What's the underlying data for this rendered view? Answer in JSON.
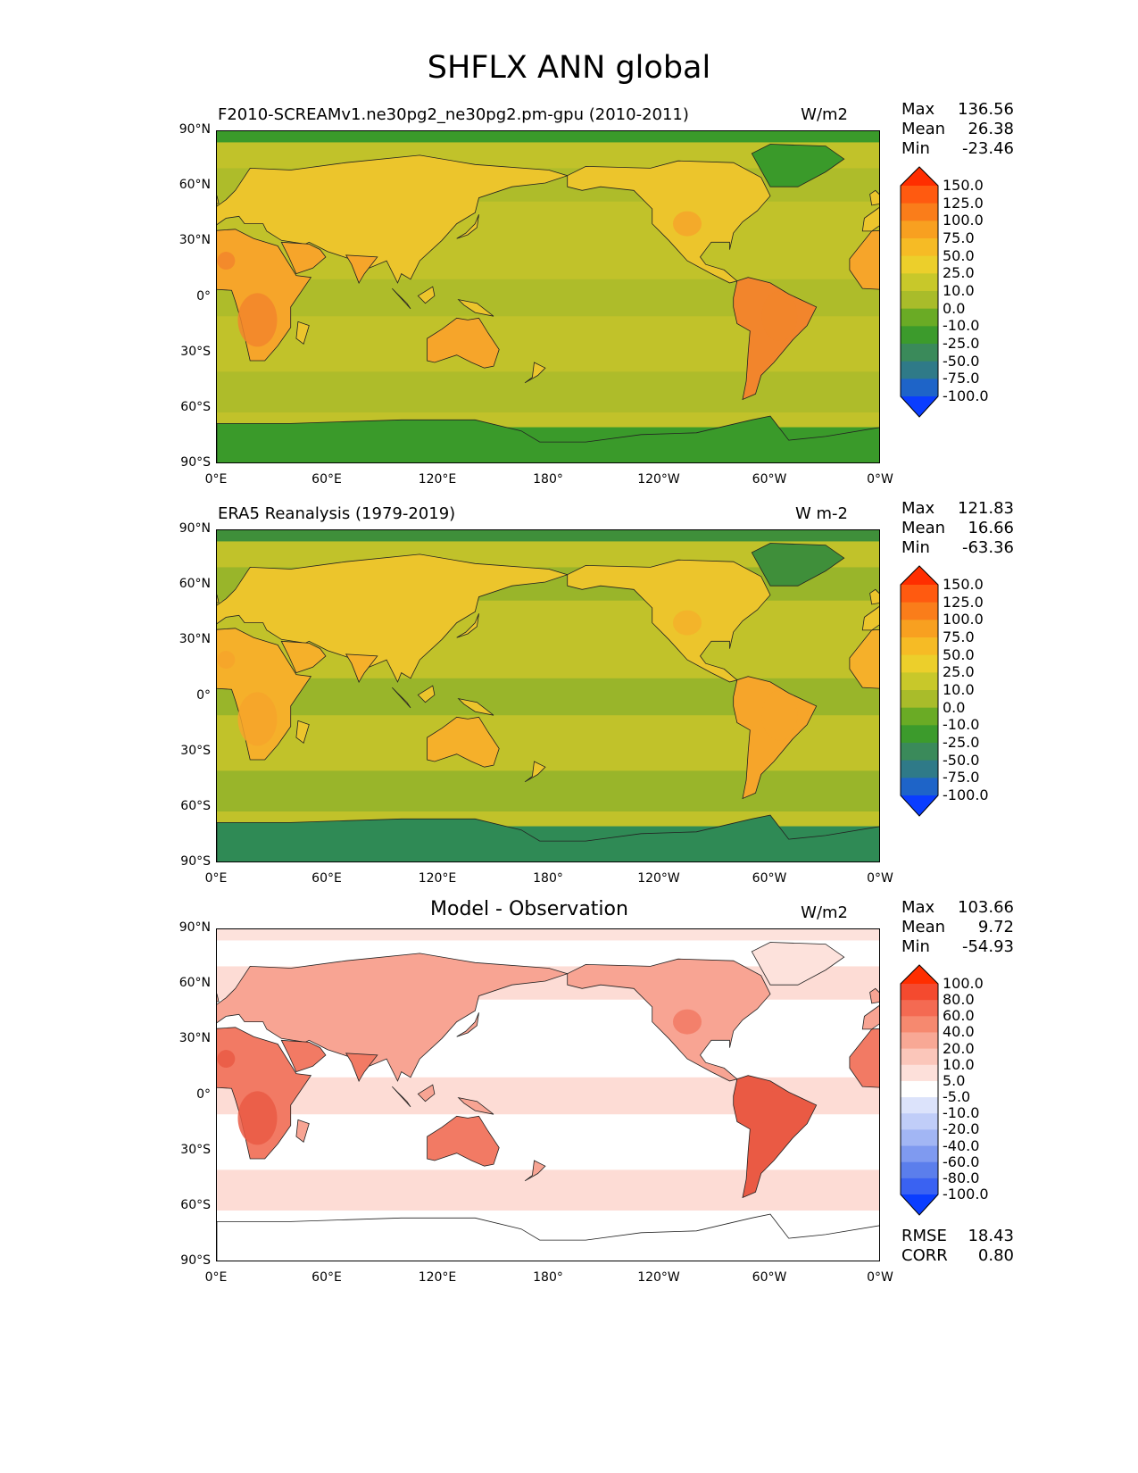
{
  "title": "SHFLX ANN global",
  "lat_ticks": [
    "90°N",
    "60°N",
    "30°N",
    "0°",
    "30°S",
    "60°S",
    "90°S"
  ],
  "lon_ticks": [
    "0°E",
    "60°E",
    "120°E",
    "180°",
    "120°W",
    "60°W",
    "0°W"
  ],
  "panels": [
    {
      "title": "F2010-SCREAMv1.ne30pg2_ne30pg2.pm-gpu (2010-2011)",
      "units": "W/m2",
      "stats": [
        {
          "label": "Max",
          "value": "136.56"
        },
        {
          "label": "Mean",
          "value": "26.38"
        },
        {
          "label": "Min",
          "value": "-23.46"
        }
      ],
      "colorbar_labels": [
        "150.0",
        "125.0",
        "100.0",
        "75.0",
        "50.0",
        "25.0",
        "10.0",
        "0.0",
        "-10.0",
        "-25.0",
        "-50.0",
        "-75.0",
        "-100.0"
      ],
      "colors": {
        "arctic_ice": "#3a9a2a",
        "antarctic": "#3a9a2a",
        "ocean": "#c1c22a",
        "ocean_alt": "#a9ba2b",
        "land": "#ecc52c",
        "hot": "#f6a52a",
        "very_hot": "#f2852c"
      }
    },
    {
      "title": "ERA5 Reanalysis (1979-2019)",
      "units": "W m-2",
      "stats": [
        {
          "label": "Max",
          "value": "121.83"
        },
        {
          "label": "Mean",
          "value": "16.66"
        },
        {
          "label": "Min",
          "value": "-63.36"
        }
      ],
      "colorbar_labels": [
        "150.0",
        "125.0",
        "100.0",
        "75.0",
        "50.0",
        "25.0",
        "10.0",
        "0.0",
        "-10.0",
        "-25.0",
        "-50.0",
        "-75.0",
        "-100.0"
      ],
      "colors": {
        "arctic_ice": "#3f8f3a",
        "antarctic": "#2f8a55",
        "ocean": "#c1c22a",
        "ocean_alt": "#8fb22a",
        "land": "#ecc52c",
        "hot": "#f5b02a",
        "very_hot": "#f6a52a"
      }
    },
    {
      "title": "Model - Observation",
      "units": "W/m2",
      "stats": [
        {
          "label": "Max",
          "value": "103.66"
        },
        {
          "label": "Mean",
          "value": "9.72"
        },
        {
          "label": "Min",
          "value": "-54.93"
        }
      ],
      "colorbar_labels": [
        "100.0",
        "80.0",
        "60.0",
        "40.0",
        "20.0",
        "10.0",
        "5.0",
        "-5.0",
        "-10.0",
        "-20.0",
        "-40.0",
        "-60.0",
        "-80.0",
        "-100.0"
      ],
      "colors": {
        "arctic_ice": "#fde2dc",
        "antarctic": "#ffffff",
        "ocean": "#ffffff",
        "ocean_alt": "#fdd3cb",
        "land": "#f8a493",
        "hot": "#f27a64",
        "very_hot": "#ea5a44"
      },
      "error_stats": [
        {
          "label": "RMSE",
          "value": "18.43"
        },
        {
          "label": "CORR",
          "value": "0.80"
        }
      ]
    }
  ],
  "colorbar_colors_abs": [
    "#ff2e00",
    "#ff5a10",
    "#fa7d1a",
    "#f8a020",
    "#f6bb25",
    "#eccf2b",
    "#c8c82a",
    "#a9bc2a",
    "#6aab25",
    "#3c9b2c",
    "#3a8a5a",
    "#2f7a88",
    "#1e64c8",
    "#0a3dff"
  ],
  "colorbar_colors_diff": [
    "#ff2e00",
    "#f44a2f",
    "#f46a52",
    "#f6896f",
    "#f8a895",
    "#fbc6ba",
    "#fde0da",
    "#ffffff",
    "#dce3fb",
    "#c0cdf8",
    "#a2b6f4",
    "#7f9af0",
    "#5b7eec",
    "#3a62f2",
    "#0a3dff"
  ]
}
